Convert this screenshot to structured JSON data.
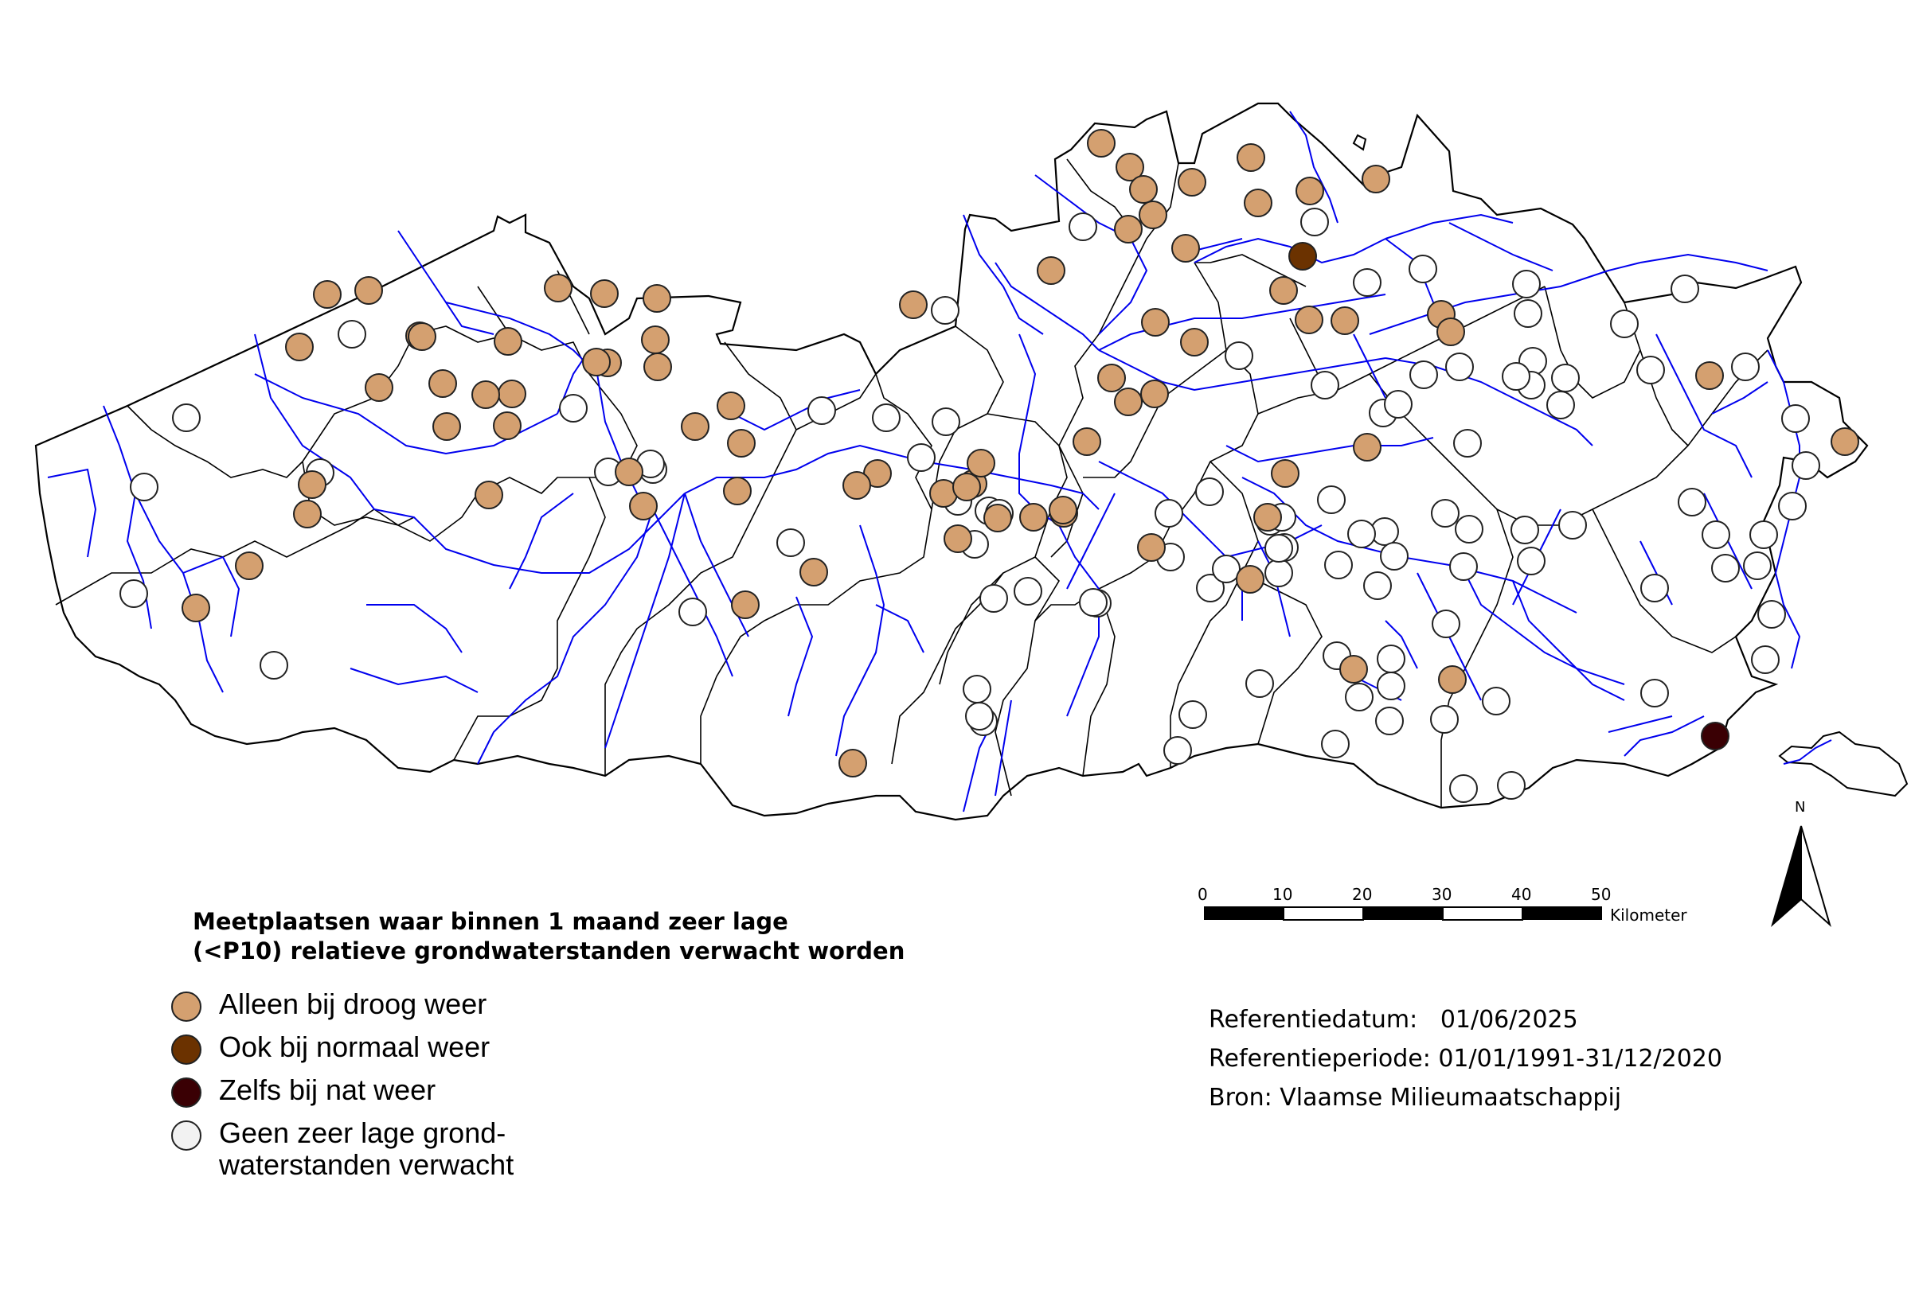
{
  "legend": {
    "title_line1": "Meetplaatsen waar binnen 1 maand zeer lage",
    "title_line2": "(<P10) relatieve grondwaterstanden verwacht worden",
    "items": [
      {
        "label": "Alleen bij droog weer",
        "color": "#d4a070"
      },
      {
        "label": "Ook bij normaal weer",
        "color": "#6b3200"
      },
      {
        "label": "Zelfs bij nat weer",
        "color": "#3a0004"
      },
      {
        "label": "Geen zeer lage grond-\nwaterstanden verwacht",
        "color": "#f2f2f2"
      }
    ]
  },
  "metadata": {
    "referentiedatum": "Referentiedatum:   01/06/2025",
    "referentieperiode": "Referentieperiode: 01/01/1991-31/12/2020",
    "bron": "Bron: Vlaamse Milieumaatschappij"
  },
  "scale_bar": {
    "ticks": [
      "0",
      "10",
      "20",
      "30",
      "40",
      "50"
    ],
    "unit": "Kilometer"
  },
  "north_arrow": {
    "label": "N"
  },
  "colors": {
    "droog": "#d4a070",
    "normaal": "#6b3200",
    "nat": "#3a0004",
    "geen": "#ffffff",
    "rivers": "#0000ee",
    "borders": "#000000"
  }
}
